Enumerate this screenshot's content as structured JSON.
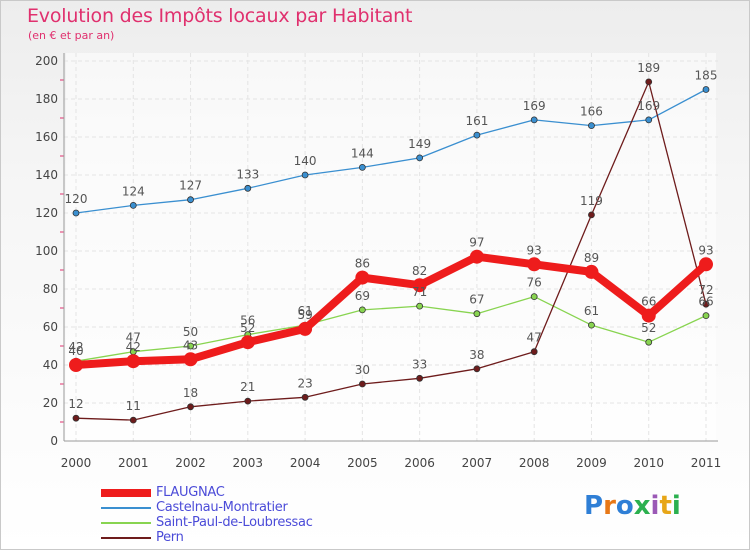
{
  "title": "Evolution des Impôts locaux par Habitant",
  "subtitle": "(en € et par an)",
  "logo": {
    "text": "Proxiti",
    "colors": [
      "#2f7fd6",
      "#e77817",
      "#2f7fd6",
      "#2bb04f",
      "#9b59b6",
      "#e7a617",
      "#2bb04f"
    ]
  },
  "chart_data": {
    "type": "line",
    "title": "Evolution des Impôts locaux par Habitant",
    "subtitle": "(en € et par an)",
    "xlabel": "",
    "ylabel": "",
    "x": [
      "2000",
      "2001",
      "2002",
      "2003",
      "2004",
      "2005",
      "2006",
      "2007",
      "2008",
      "2009",
      "2010",
      "2011"
    ],
    "ylim": [
      0,
      200
    ],
    "yticks": [
      0,
      20,
      40,
      60,
      80,
      100,
      120,
      140,
      160,
      180,
      200
    ],
    "grid": true,
    "legend_position": "bottom-left",
    "series": [
      {
        "name": "FLAUGNAC",
        "color": "#ee1c1c",
        "emphasis": true,
        "values": [
          40,
          42,
          43,
          52,
          59,
          86,
          82,
          97,
          93,
          89,
          66,
          93
        ],
        "labels": [
          "40",
          "42",
          "43",
          "52",
          "59",
          "86",
          "82",
          "97",
          "93",
          "89",
          "66",
          "93"
        ]
      },
      {
        "name": "Castelnau-Montratier",
        "color": "#3a8fd0",
        "emphasis": false,
        "values": [
          120,
          124,
          127,
          133,
          140,
          144,
          149,
          161,
          169,
          166,
          169,
          185
        ],
        "labels": [
          "120",
          "124",
          "127",
          "133",
          "140",
          "144",
          "149",
          "161",
          "169",
          "166",
          "169",
          "185"
        ]
      },
      {
        "name": "Saint-Paul-de-Loubressac",
        "color": "#88d450",
        "emphasis": false,
        "values": [
          42,
          47,
          50,
          56,
          61,
          69,
          71,
          67,
          76,
          61,
          52,
          66
        ],
        "labels": [
          "42",
          "47",
          "50",
          "56",
          "61",
          "69",
          "71",
          "67",
          "76",
          "61",
          "52",
          "66"
        ]
      },
      {
        "name": "Pern",
        "color": "#6e1c1c",
        "emphasis": false,
        "values": [
          12,
          11,
          18,
          21,
          23,
          30,
          33,
          38,
          47,
          119,
          189,
          72
        ],
        "labels": [
          "12",
          "11",
          "18",
          "21",
          "23",
          "30",
          "33",
          "38",
          "47",
          "119",
          "189",
          "72"
        ]
      }
    ]
  }
}
